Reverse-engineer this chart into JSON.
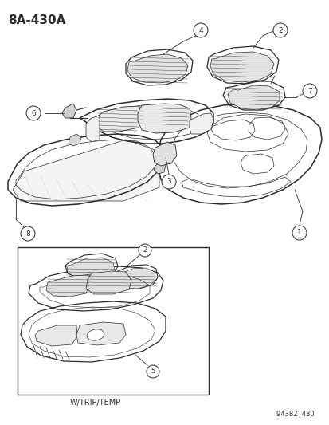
{
  "title": "8A-430A",
  "background_color": "#ffffff",
  "fig_width": 4.14,
  "fig_height": 5.33,
  "dpi": 100,
  "bottom_left_text": "W/TRIP/TEMP",
  "bottom_right_text": "94382  430",
  "line_color": "#2a2a2a",
  "font_size_title": 11,
  "font_size_label": 7,
  "font_size_bottom": 7
}
